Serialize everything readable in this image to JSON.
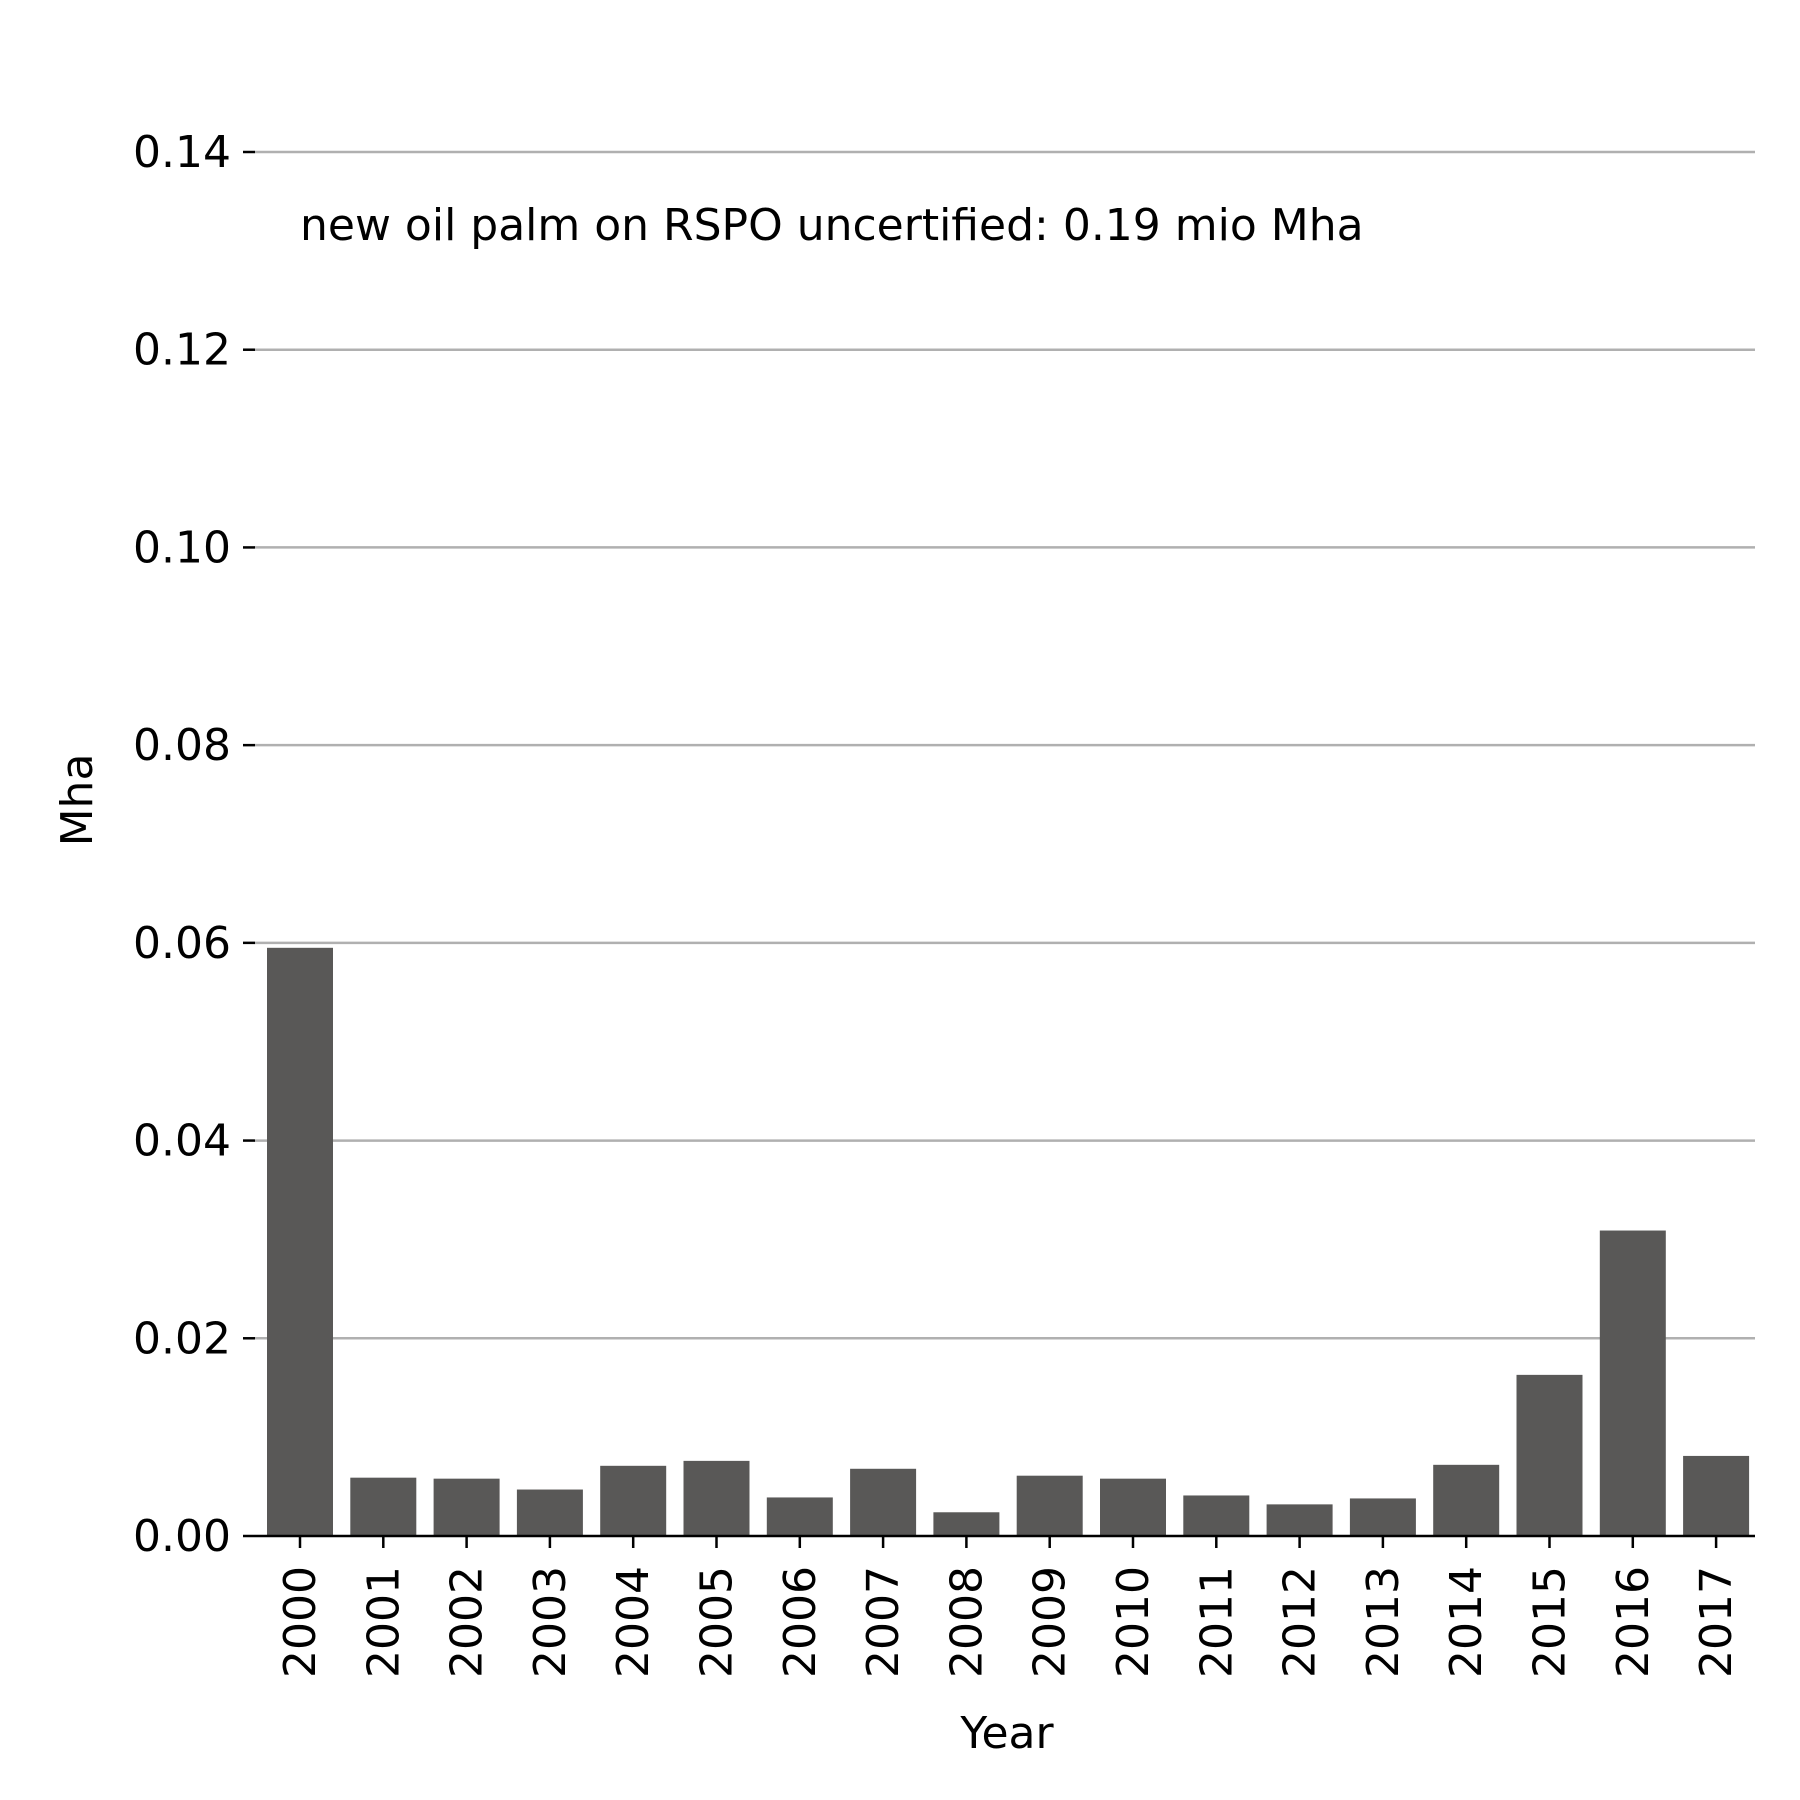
{
  "chart_data": {
    "type": "bar",
    "title": "",
    "xlabel": "Year",
    "ylabel": "Mha",
    "annotation": "new oil palm on RSPO uncertified: 0.19 mio Mha",
    "categories": [
      "2000",
      "2001",
      "2002",
      "2003",
      "2004",
      "2005",
      "2006",
      "2007",
      "2008",
      "2009",
      "2010",
      "2011",
      "2012",
      "2013",
      "2014",
      "2015",
      "2016",
      "2017"
    ],
    "values": [
      0.0595,
      0.0059,
      0.0058,
      0.0047,
      0.0071,
      0.0076,
      0.0039,
      0.0068,
      0.0024,
      0.0061,
      0.0058,
      0.0041,
      0.0032,
      0.0038,
      0.0072,
      0.0163,
      0.0309,
      0.0081
    ],
    "ylim": [
      0,
      0.14
    ],
    "yticks": [
      "0.00",
      "0.02",
      "0.04",
      "0.06",
      "0.08",
      "0.10",
      "0.12",
      "0.14"
    ],
    "grid": "horizontal",
    "bar_color": "#595857",
    "grid_color": "#b0b0b0"
  }
}
